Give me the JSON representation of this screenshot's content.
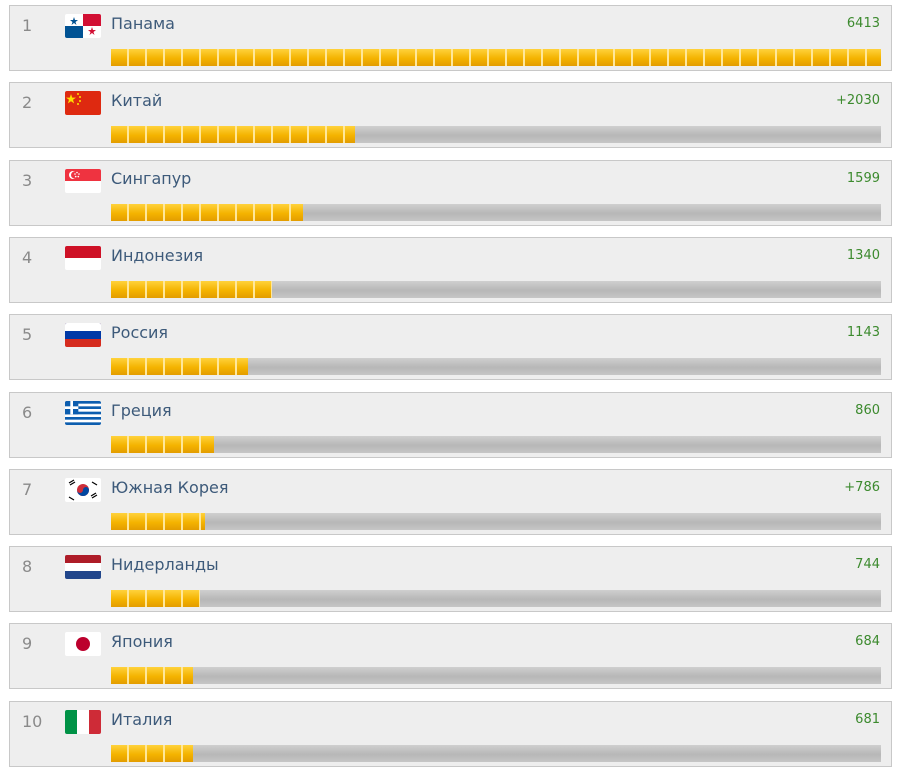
{
  "chart_data": {
    "type": "bar",
    "orientation": "horizontal",
    "categories": [
      "Панама",
      "Китай",
      "Сингапур",
      "Индонезия",
      "Россия",
      "Греция",
      "Южная Корея",
      "Нидерланды",
      "Япония",
      "Италия"
    ],
    "values": [
      6413,
      2030,
      1599,
      1340,
      1143,
      860,
      786,
      744,
      684,
      681
    ],
    "value_labels": [
      "6413",
      "+2030",
      "1599",
      "1340",
      "1143",
      "860",
      "+786",
      "744",
      "684",
      "681"
    ],
    "ranks": [
      "1",
      "2",
      "3",
      "4",
      "5",
      "6",
      "7",
      "8",
      "9",
      "10"
    ],
    "flags": [
      "panama-flag",
      "china-flag",
      "singapore-flag",
      "indonesia-flag",
      "russia-flag",
      "greece-flag",
      "south-korea-flag",
      "netherlands-flag",
      "japan-flag",
      "italy-flag"
    ],
    "xlim": [
      0,
      6413
    ],
    "colors": {
      "bar": "#f2b200",
      "track": "#c4c4c4",
      "value_text": "#3c8a2e",
      "country_text": "#3d5a7a",
      "rank_text": "#8a8a8a"
    }
  }
}
